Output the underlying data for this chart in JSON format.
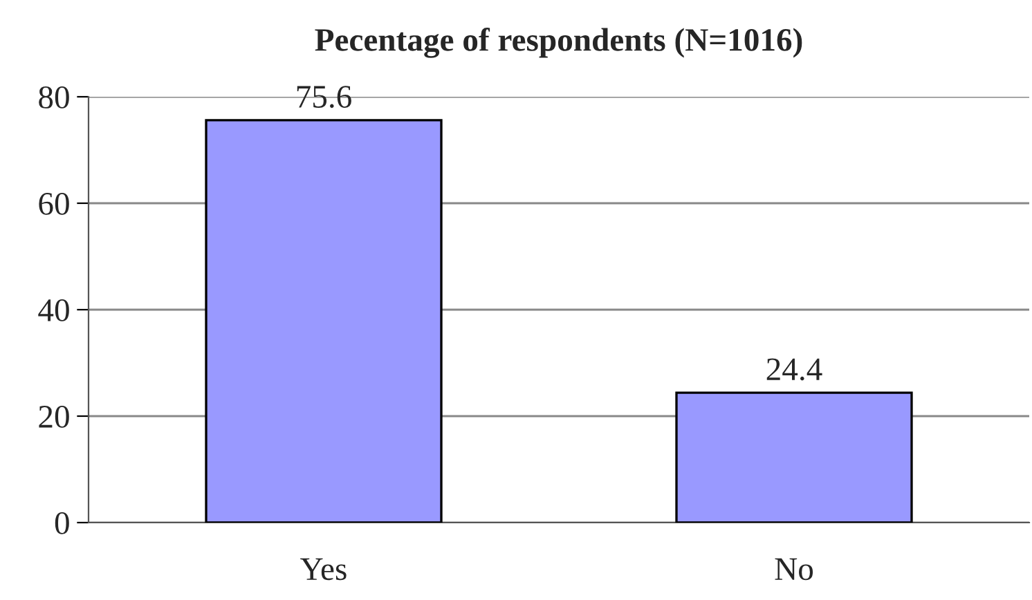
{
  "chart_data": {
    "type": "bar",
    "title": "Pecentage of respondents (N=1016)",
    "categories": [
      "Yes",
      "No"
    ],
    "values": [
      75.6,
      24.4
    ],
    "color": "#9999ff",
    "ylim": [
      0,
      80
    ],
    "yticks": [
      0,
      20,
      40,
      60,
      80
    ],
    "grid": "y",
    "data_labels": true,
    "legend": false
  }
}
